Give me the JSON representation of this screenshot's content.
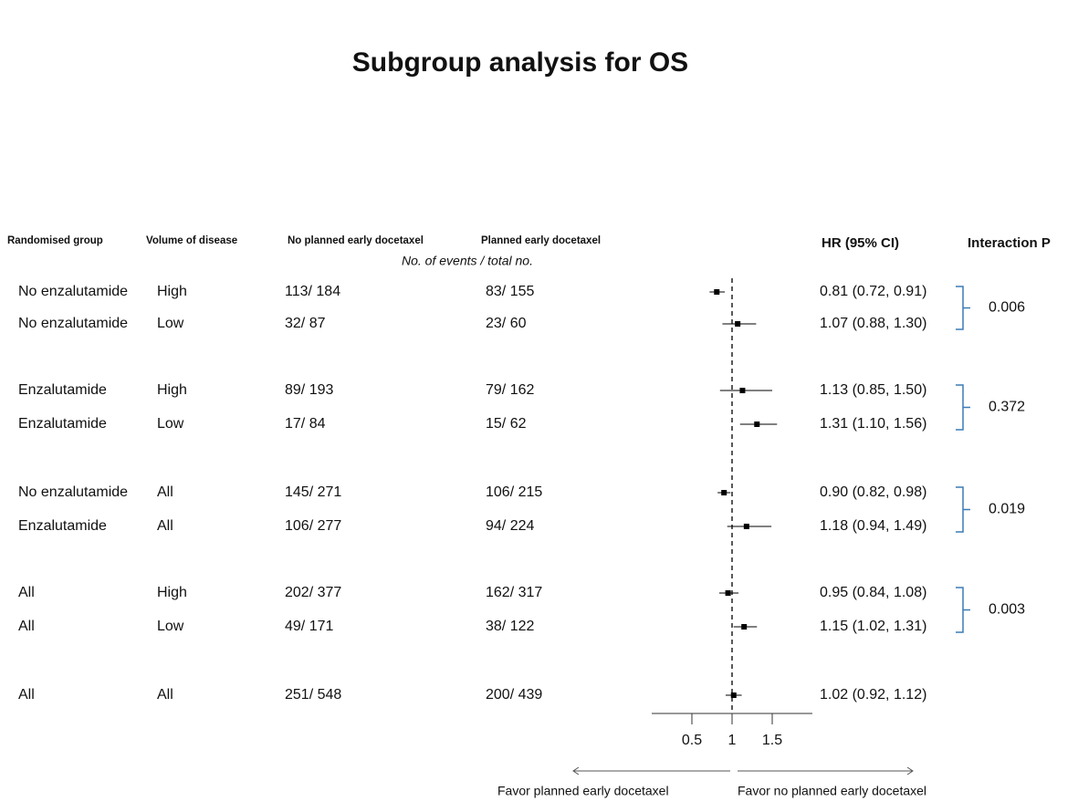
{
  "chart_data": {
    "type": "forest",
    "title": "Subgroup analysis for OS",
    "columns": [
      "Randomised group",
      "Volume of disease",
      "No planned early docetaxel",
      "Planned early docetaxel",
      "HR (95% CI)",
      "Interaction P"
    ],
    "subheader": "No. of events / total no.",
    "groups": [
      "No enzalutamide",
      "No enzalutamide",
      "Enzalutamide",
      "Enzalutamide",
      "No enzalutamide",
      "Enzalutamide",
      "All",
      "All",
      "All"
    ],
    "volumes": [
      "High",
      "Low",
      "High",
      "Low",
      "All",
      "All",
      "High",
      "Low",
      "All"
    ],
    "no_planned": [
      "113/ 184",
      "32/ 87",
      "89/ 193",
      "17/ 84",
      "145/ 271",
      "106/ 277",
      "202/ 377",
      "49/ 171",
      "251/ 548"
    ],
    "planned": [
      "83/ 155",
      "23/ 60",
      "79/ 162",
      "15/ 62",
      "106/ 215",
      "94/ 224",
      "162/ 317",
      "38/ 122",
      "200/ 439"
    ],
    "values": [
      0.81,
      1.07,
      1.13,
      1.31,
      0.9,
      1.18,
      0.95,
      1.15,
      1.02
    ],
    "lower": [
      0.72,
      0.88,
      0.85,
      1.1,
      0.82,
      0.94,
      0.84,
      1.02,
      0.92
    ],
    "upper": [
      0.91,
      1.3,
      1.5,
      1.56,
      0.98,
      1.49,
      1.08,
      1.31,
      1.12
    ],
    "value_labels": [
      "0.81 (0.72,  0.91)",
      "1.07 (0.88,  1.30)",
      "1.13 (0.85,  1.50)",
      "1.31 (1.10,  1.56)",
      "0.90 (0.82,  0.98)",
      "1.18 (0.94,  1.49)",
      "0.95 (0.84,  1.08)",
      "1.15 (1.02,  1.31)",
      "1.02 (0.92,  1.12)"
    ],
    "interaction_p": [
      0.006,
      0.372,
      0.019,
      0.003
    ],
    "xlim": [
      0,
      2
    ],
    "xticks": [
      0.5,
      1,
      1.5
    ],
    "reference": 1,
    "left_label": "Favor planned early docetaxel",
    "right_label": "Favor no planned early docetaxel",
    "color": "#000000",
    "bracket_color": "#3b7bb5"
  }
}
